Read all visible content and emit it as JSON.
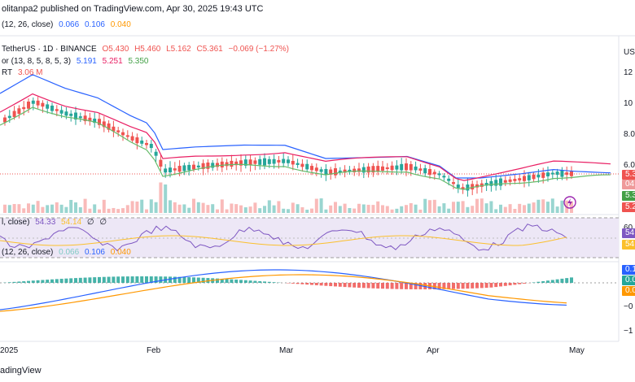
{
  "header": {
    "publish_line": "olitanpa2 published on TradingView.com, Apr 30, 2025 19:43 UTC",
    "macd_top_prefix": "(12, 26, close)",
    "macd_top_vals": [
      "0.066",
      "0.106",
      "0.040"
    ]
  },
  "legend": {
    "symbol": "TetherUS · 1D · BINANCE",
    "ohlc": [
      "O5.430",
      "H5.460",
      "L5.162",
      "C5.361",
      "−0.069 (−1.27%)"
    ],
    "alligator_name": "or (13, 8, 5, 8, 5, 3)",
    "alligator_vals": [
      "5.191",
      "5.251",
      "5.350"
    ],
    "volume_name": "RT",
    "volume_val": "3.06 M",
    "rsi_name": "l, close)",
    "rsi_vals": [
      "54.33",
      "54.14",
      "∅",
      "∅"
    ],
    "macd_name": "(12, 26, close)",
    "macd_vals": [
      "0.066",
      "0.106",
      "0.040"
    ]
  },
  "price_axis": {
    "currency": "US",
    "ticks": [
      "12",
      "10",
      "8.00",
      "6.0"
    ],
    "badges": [
      "5.3",
      "04",
      "5.3",
      "5.2"
    ]
  },
  "rsi_axis": {
    "ticks": [
      "60"
    ],
    "badges": [
      "54",
      "54"
    ]
  },
  "macd_axis": {
    "ticks": [
      "0.0",
      "−0",
      "−1"
    ],
    "badges": [
      "0.1",
      "0.0",
      "0.0"
    ]
  },
  "time_axis": {
    "labels": [
      "2025",
      "Feb",
      "Mar",
      "Apr",
      "May"
    ]
  },
  "footer": {
    "brand": "adingView"
  },
  "colors": {
    "up": "#26a69a",
    "down": "#ef5350",
    "jaw": "#2962ff",
    "teeth": "#e91e63",
    "lips": "#66bb6a",
    "rsi": "#7e57c2",
    "rsi_ma": "#fbc02d",
    "macd": "#2962ff",
    "signal": "#ff9800",
    "rsi_band": "#ede7f6"
  }
}
